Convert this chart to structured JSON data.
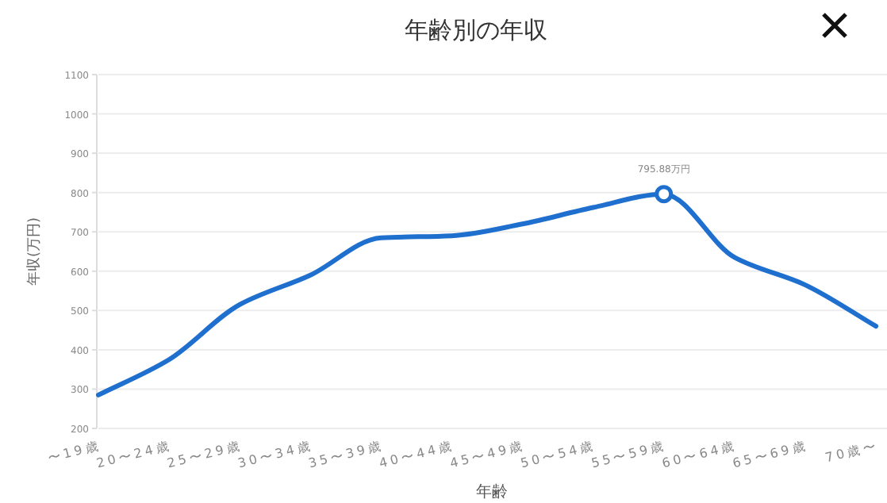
{
  "chart_data": {
    "type": "line",
    "title": "年齢別の年収",
    "xlabel": "年齢",
    "ylabel": "年収(万円)",
    "categories": [
      "〜19歳",
      "20〜24歳",
      "25〜29歳",
      "30〜34歳",
      "35〜39歳",
      "40〜44歳",
      "45〜49歳",
      "50〜54歳",
      "55〜59歳",
      "60〜64歳",
      "65〜69歳",
      "70歳〜"
    ],
    "series": [
      {
        "color": "#1f6fcf",
        "values": [
          285,
          375,
          515,
          590,
          685,
          690,
          720,
          762,
          795.88,
          635,
          565,
          460
        ]
      }
    ],
    "ylim": [
      200,
      1100
    ],
    "yticks": [
      200,
      300,
      400,
      500,
      600,
      700,
      800,
      900,
      1000,
      1100
    ],
    "grid": "y",
    "marker": "none",
    "line_style": "solid",
    "annotations": [
      {
        "text": "795.88万円",
        "x": "55〜59歳",
        "y": 795.88
      }
    ]
  }
}
